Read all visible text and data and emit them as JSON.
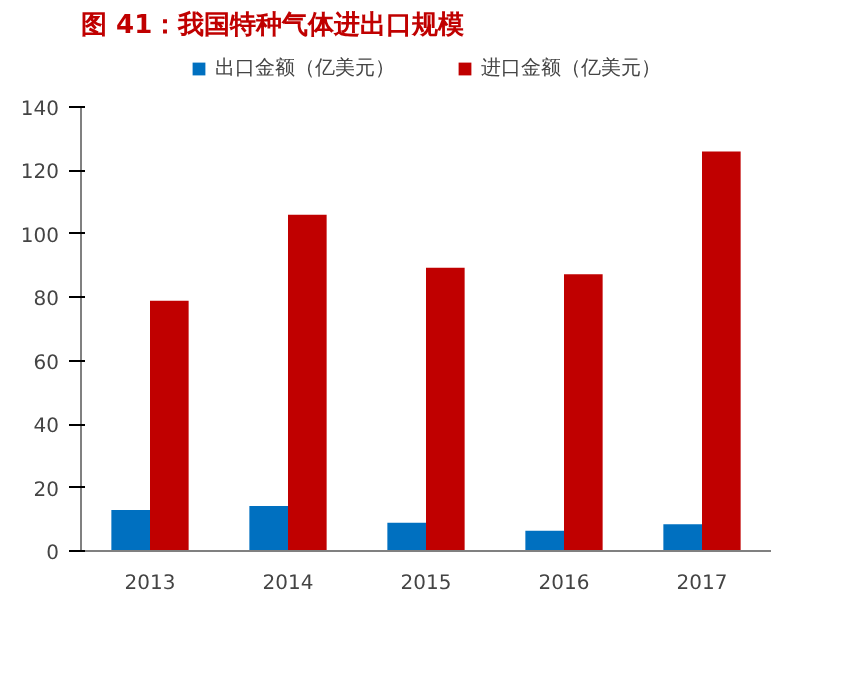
{
  "chart_data": {
    "type": "bar",
    "title": "图 41：我国特种气体进出口规模",
    "categories": [
      "2013",
      "2014",
      "2015",
      "2016",
      "2017"
    ],
    "series": [
      {
        "name": "出口金额（亿美元）",
        "color": "#0070c0",
        "values": [
          12.9,
          14.2,
          8.9,
          6.4,
          8.4
        ]
      },
      {
        "name": "进口金额（亿美元）",
        "color": "#c00000",
        "values": [
          78.9,
          106,
          89.3,
          87.3,
          126
        ]
      }
    ],
    "ylim": [
      0,
      140
    ],
    "yticks": [
      0,
      20,
      40,
      60,
      80,
      100,
      120,
      140
    ],
    "grid": false,
    "legend": "top"
  }
}
